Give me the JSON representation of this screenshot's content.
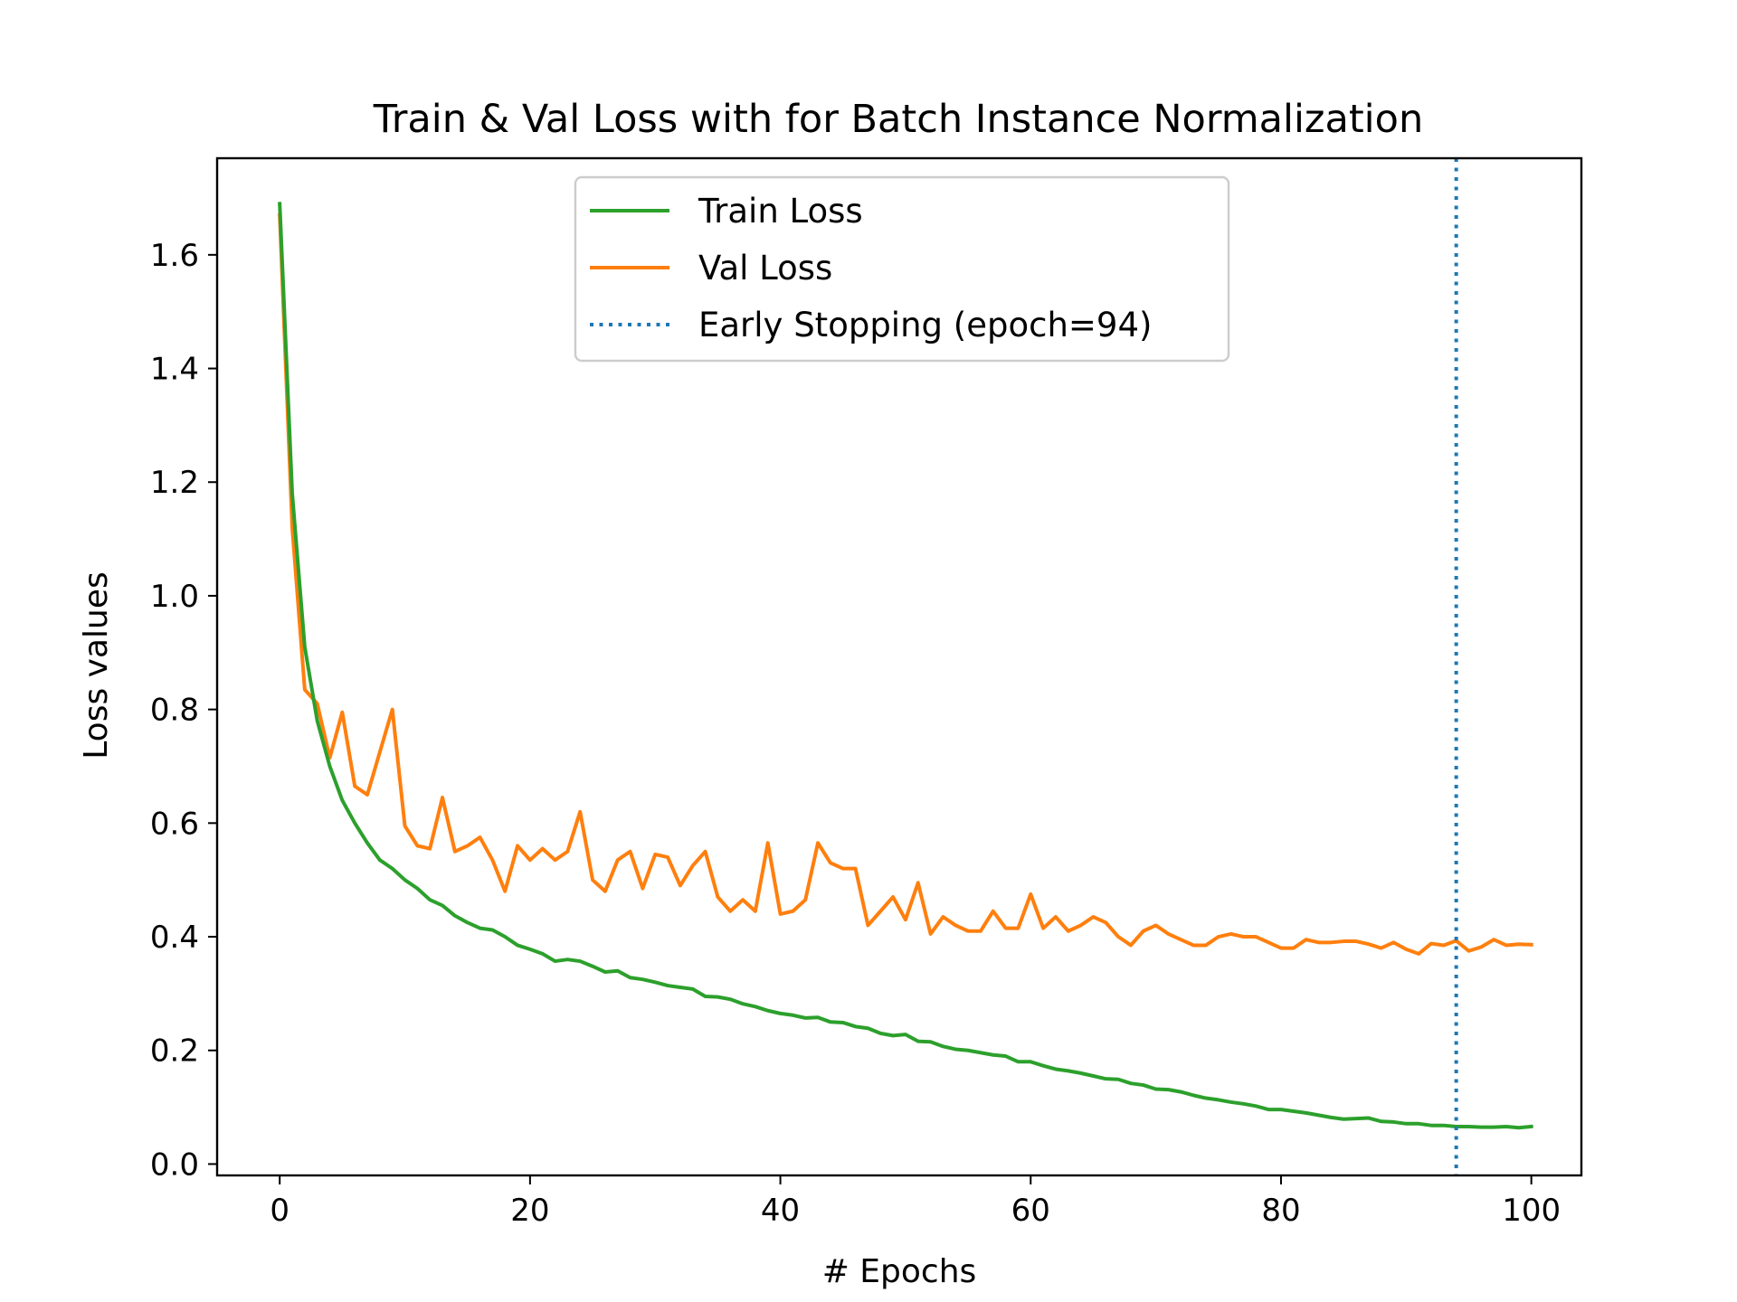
{
  "chart_data": {
    "type": "line",
    "title": "Train & Val Loss with for Batch Instance Normalization",
    "xlabel": "# Epochs",
    "ylabel": "Loss values",
    "xlim": [
      -5,
      104
    ],
    "ylim": [
      -0.02,
      1.77
    ],
    "x_ticks": [
      0,
      20,
      40,
      60,
      80,
      100
    ],
    "y_ticks": [
      0.0,
      0.2,
      0.4,
      0.6,
      0.8,
      1.0,
      1.2,
      1.4,
      1.6
    ],
    "grid": false,
    "legend": "upper center",
    "series": [
      {
        "name": "Train Loss",
        "color": "#2ca02c",
        "style": "solid",
        "values": [
          1.69,
          1.18,
          0.91,
          0.78,
          0.7,
          0.64,
          0.6,
          0.565,
          0.535,
          0.52,
          0.5,
          0.485,
          0.465,
          0.455,
          0.437,
          0.425,
          0.415,
          0.412,
          0.4,
          0.385,
          0.378,
          0.37,
          0.357,
          0.36,
          0.357,
          0.348,
          0.338,
          0.34,
          0.328,
          0.325,
          0.32,
          0.314,
          0.311,
          0.308,
          0.295,
          0.294,
          0.29,
          0.282,
          0.277,
          0.27,
          0.265,
          0.262,
          0.257,
          0.258,
          0.25,
          0.249,
          0.242,
          0.239,
          0.23,
          0.226,
          0.228,
          0.216,
          0.215,
          0.207,
          0.202,
          0.2,
          0.196,
          0.192,
          0.19,
          0.18,
          0.18,
          0.173,
          0.167,
          0.164,
          0.16,
          0.155,
          0.15,
          0.149,
          0.142,
          0.139,
          0.132,
          0.131,
          0.127,
          0.121,
          0.116,
          0.113,
          0.109,
          0.106,
          0.102,
          0.096,
          0.096,
          0.093,
          0.09,
          0.086,
          0.082,
          0.079,
          0.08,
          0.081,
          0.075,
          0.074,
          0.071,
          0.071,
          0.068,
          0.068,
          0.066,
          0.066,
          0.065,
          0.065,
          0.066,
          0.064,
          0.066
        ]
      },
      {
        "name": "Val Loss",
        "color": "#ff7f0e",
        "style": "solid",
        "values": [
          1.67,
          1.12,
          0.835,
          0.81,
          0.715,
          0.795,
          0.665,
          0.65,
          0.725,
          0.8,
          0.595,
          0.56,
          0.555,
          0.645,
          0.55,
          0.56,
          0.575,
          0.535,
          0.48,
          0.56,
          0.535,
          0.555,
          0.535,
          0.55,
          0.62,
          0.5,
          0.48,
          0.535,
          0.55,
          0.485,
          0.545,
          0.54,
          0.49,
          0.525,
          0.55,
          0.47,
          0.445,
          0.465,
          0.445,
          0.565,
          0.44,
          0.445,
          0.465,
          0.565,
          0.53,
          0.52,
          0.52,
          0.42,
          0.445,
          0.47,
          0.43,
          0.495,
          0.405,
          0.435,
          0.42,
          0.41,
          0.41,
          0.445,
          0.415,
          0.415,
          0.475,
          0.415,
          0.435,
          0.41,
          0.42,
          0.435,
          0.425,
          0.4,
          0.385,
          0.41,
          0.42,
          0.405,
          0.395,
          0.385,
          0.385,
          0.4,
          0.405,
          0.4,
          0.4,
          0.39,
          0.38,
          0.38,
          0.395,
          0.39,
          0.39,
          0.392,
          0.392,
          0.387,
          0.38,
          0.39,
          0.378,
          0.37,
          0.388,
          0.385,
          0.393,
          0.375,
          0.382,
          0.395,
          0.385,
          0.387,
          0.386
        ]
      }
    ],
    "vlines": [
      {
        "name": "Early Stopping (epoch=94)",
        "x": 94,
        "color": "#1f77b4",
        "style": "dotted"
      }
    ]
  }
}
